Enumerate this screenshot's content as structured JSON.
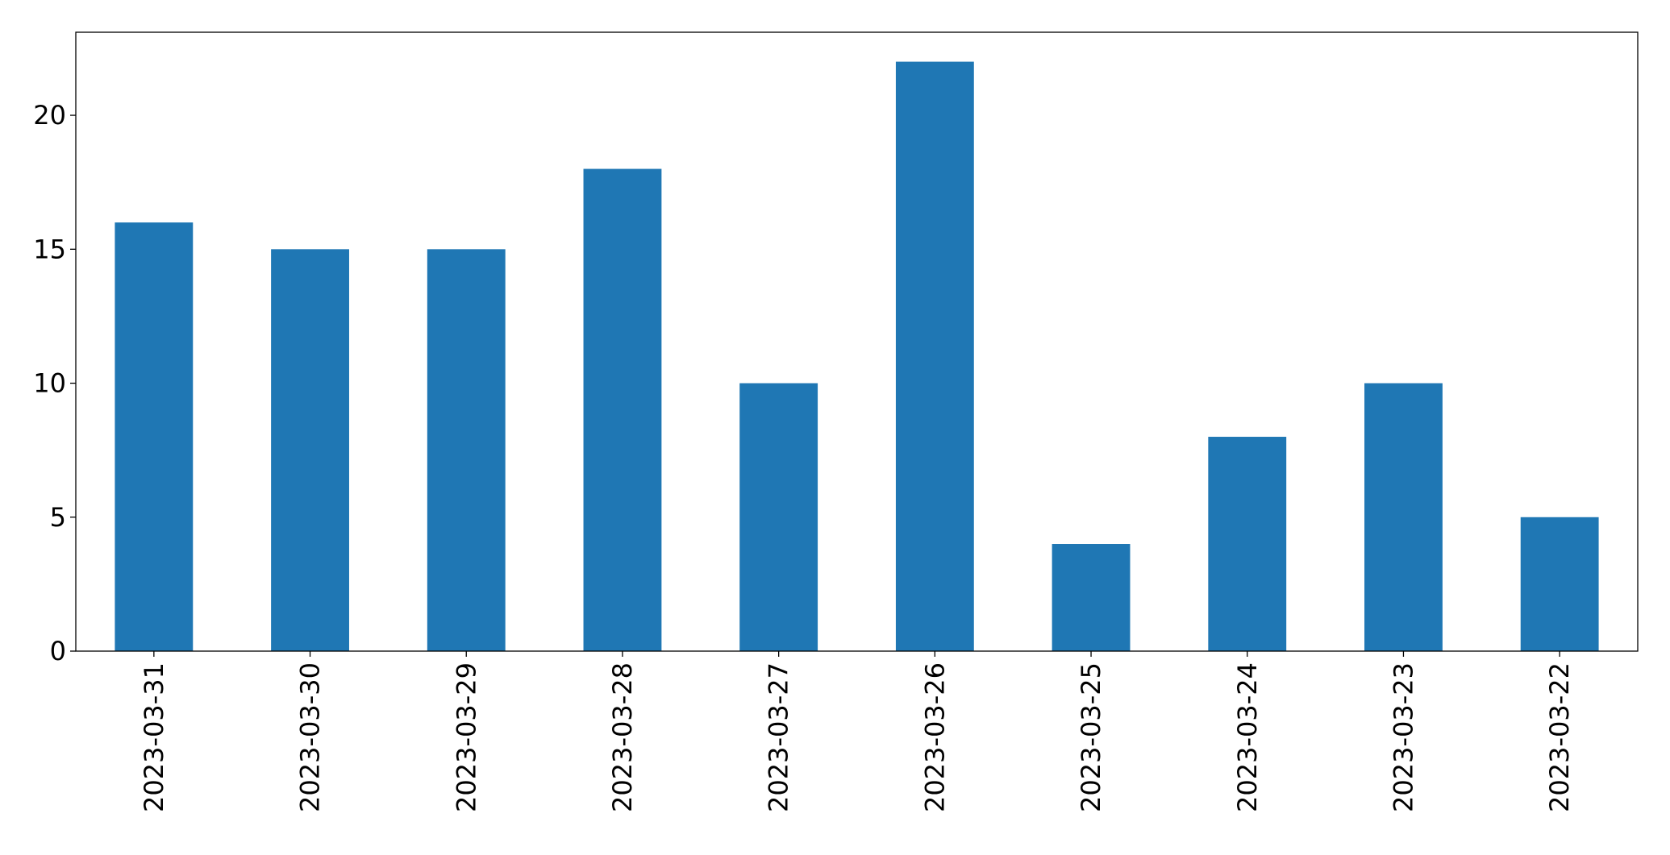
{
  "chart_data": {
    "type": "bar",
    "categories": [
      "2023-03-31",
      "2023-03-30",
      "2023-03-29",
      "2023-03-28",
      "2023-03-27",
      "2023-03-26",
      "2023-03-25",
      "2023-03-24",
      "2023-03-23",
      "2023-03-22"
    ],
    "values": [
      16,
      15,
      15,
      18,
      10,
      22,
      4,
      8,
      10,
      5
    ],
    "color": "#1f77b4",
    "ylim": [
      0,
      23.1
    ],
    "yticks": [
      0,
      5,
      10,
      15,
      20
    ],
    "grid": false
  }
}
